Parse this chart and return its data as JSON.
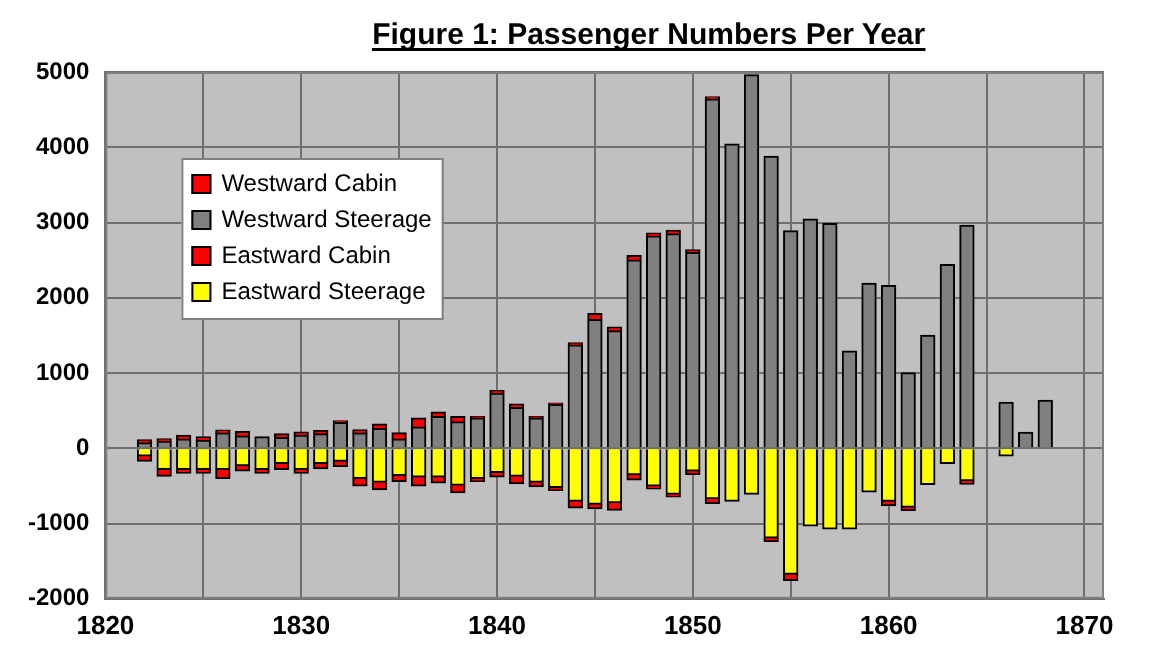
{
  "chart_data": {
    "type": "bar",
    "title": "Figure 1: Passenger Numbers Per Year",
    "stacked": true,
    "grid": true,
    "legend": "top left",
    "x": [
      1822,
      1823,
      1824,
      1825,
      1826,
      1827,
      1828,
      1829,
      1830,
      1831,
      1832,
      1833,
      1834,
      1835,
      1836,
      1837,
      1838,
      1839,
      1840,
      1841,
      1842,
      1843,
      1844,
      1845,
      1846,
      1847,
      1848,
      1849,
      1850,
      1851,
      1852,
      1853,
      1854,
      1855,
      1856,
      1857,
      1858,
      1859,
      1860,
      1861,
      1862,
      1863,
      1864,
      1866,
      1867,
      1868
    ],
    "xlim": [
      1820,
      1871
    ],
    "xticks": [
      1820,
      {
        "value": 1825,
        "label": null
      },
      1830,
      {
        "value": 1835,
        "label": null
      },
      1840,
      {
        "value": 1845,
        "label": null
      },
      1850,
      {
        "value": 1855,
        "label": null
      },
      1860,
      {
        "value": 1865,
        "label": null
      },
      1870
    ],
    "ylim": [
      -2000,
      5000
    ],
    "yticks": [
      -2000,
      -1000,
      0,
      1000,
      2000,
      3000,
      4000,
      5000
    ],
    "series": [
      {
        "name": "Westward Steerage",
        "color": "#808080",
        "values": [
          70,
          90,
          120,
          105,
          200,
          160,
          150,
          140,
          170,
          190,
          340,
          200,
          260,
          120,
          280,
          420,
          350,
          400,
          730,
          540,
          400,
          580,
          1370,
          1710,
          1560,
          2500,
          2820,
          2850,
          2600,
          4640,
          4040,
          4960,
          3880,
          2890,
          3045,
          2985,
          1290,
          2190,
          2160,
          1000,
          1500,
          2440,
          2960,
          610,
          210,
          635
        ]
      },
      {
        "name": "Westward Cabin",
        "color": "#ff0000",
        "values": [
          40,
          35,
          50,
          45,
          40,
          60,
          null,
          50,
          45,
          45,
          25,
          45,
          60,
          85,
          120,
          60,
          70,
          20,
          35,
          45,
          20,
          20,
          30,
          80,
          50,
          60,
          40,
          45,
          35,
          30,
          0,
          0,
          0,
          0,
          0,
          0,
          0,
          0,
          0,
          0,
          0,
          0,
          0,
          0,
          0,
          0
        ]
      },
      {
        "name": "Eastward Steerage",
        "color": "#ffff00",
        "values": [
          -100,
          -280,
          -280,
          -280,
          -280,
          -230,
          -280,
          -200,
          -280,
          -200,
          -170,
          -400,
          -450,
          -360,
          -380,
          -380,
          -490,
          -400,
          -320,
          -370,
          -450,
          -520,
          -700,
          -740,
          -720,
          -350,
          -500,
          -610,
          -300,
          -670,
          -700,
          -610,
          -1190,
          -1670,
          -1030,
          -1070,
          -1070,
          -580,
          -700,
          -780,
          -480,
          -200,
          -430,
          -100,
          0,
          0
        ]
      },
      {
        "name": "Eastward Cabin",
        "color": "#ff0000",
        "values": [
          -70,
          -90,
          -50,
          -50,
          -120,
          -70,
          -50,
          -80,
          -50,
          -70,
          -70,
          -100,
          -100,
          -80,
          -120,
          -80,
          -100,
          -40,
          -60,
          -100,
          -60,
          -40,
          -90,
          -60,
          -100,
          -70,
          -40,
          -35,
          -45,
          -60,
          0,
          0,
          -45,
          -85,
          0,
          0,
          0,
          0,
          -60,
          -45,
          0,
          0,
          -45,
          0,
          0,
          0
        ]
      }
    ]
  }
}
